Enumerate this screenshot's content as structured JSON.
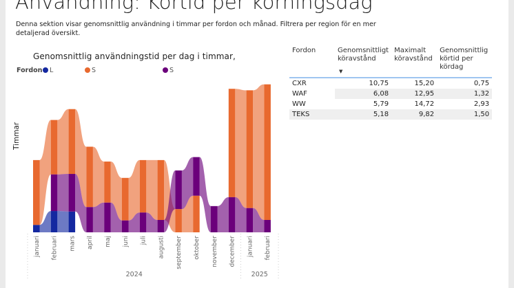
{
  "page": {
    "title": "Användning: Körtid per körningsdag",
    "description": "Denna sektion visar genomsnittlig användning i timmar per fordon och månad. Filtrera per region för en mer detaljerad översikt."
  },
  "chart_data": {
    "type": "ribbon",
    "title": "Genomsnittlig användningstid per dag i timmar,",
    "ylabel": "Timmar",
    "legend_title": "Fordon",
    "legend_placement": "top-left",
    "grid": false,
    "categories": [
      "januari",
      "februari",
      "mars",
      "april",
      "maj",
      "juni",
      "juli",
      "augusti",
      "september",
      "oktober",
      "november",
      "december",
      "januari",
      "februari"
    ],
    "year_groups": [
      {
        "label": "2024",
        "count": 12
      },
      {
        "label": "2025",
        "count": 2
      }
    ],
    "series": [
      {
        "name": "L",
        "color": "#1428A0",
        "values": [
          0.15,
          0.43,
          0.42,
          0,
          0,
          0,
          0,
          0,
          0,
          0,
          0,
          0,
          0,
          0
        ]
      },
      {
        "name": "S",
        "color": "#E8692F",
        "values": [
          1.31,
          1.1,
          1.31,
          1.22,
          0.83,
          0.86,
          1.06,
          1.21,
          0.47,
          0.74,
          0,
          2.19,
          2.38,
          2.74
        ]
      },
      {
        "name": "S",
        "color": "#6B007B",
        "values": [
          0,
          0.74,
          0.76,
          0.51,
          0.6,
          0.24,
          0.4,
          0.25,
          0.78,
          0.78,
          0.53,
          0.71,
          0.49,
          0.25
        ]
      }
    ]
  },
  "table": {
    "headers": [
      "Fordon",
      "Genomsnittligt köravstånd",
      "Maximalt köravstånd",
      "Genomsnittlig körtid per kördag"
    ],
    "sort_icon": "sort-descending-icon",
    "rows": [
      [
        "CXR",
        "10,75",
        "15,20",
        "0,75"
      ],
      [
        "WAF",
        "6,08",
        "12,95",
        "1,32"
      ],
      [
        "WW",
        "5,79",
        "14,72",
        "2,93"
      ],
      [
        "TEKS",
        "5,18",
        "9,82",
        "1,50"
      ]
    ],
    "accent": "#9ec5f0"
  }
}
